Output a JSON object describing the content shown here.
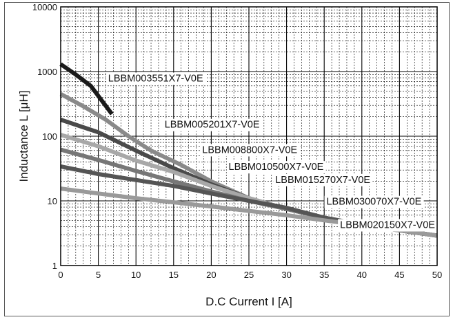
{
  "chart_data": {
    "type": "line",
    "title": "",
    "xlabel": "D.C Current I [A]",
    "ylabel": "Inductance L  [μH]",
    "xlim": [
      0,
      50
    ],
    "ylim": [
      1,
      10000
    ],
    "yscale": "log",
    "grid": true,
    "x_ticks": [
      0,
      5,
      10,
      15,
      20,
      25,
      30,
      35,
      40,
      45,
      50
    ],
    "y_ticks": [
      1,
      10,
      100,
      1000,
      10000
    ],
    "x_tick_labels": [
      "0",
      "5",
      "10",
      "15",
      "20",
      "25",
      "30",
      "35",
      "40",
      "45",
      "50"
    ],
    "y_tick_labels": [
      "1",
      "10",
      "100",
      "1000",
      "10000"
    ],
    "series": [
      {
        "name": "LBBM003551X7-V0E",
        "color": "#1a1a1a",
        "points": [
          [
            0,
            1300
          ],
          [
            2,
            900
          ],
          [
            4,
            600
          ],
          [
            6.8,
            220
          ]
        ]
      },
      {
        "name": "LBBM005201X7-V0E",
        "color": "#8a8a8a",
        "points": [
          [
            0,
            450
          ],
          [
            3,
            290
          ],
          [
            6,
            180
          ],
          [
            9,
            100
          ],
          [
            12,
            60
          ],
          [
            16,
            36
          ],
          [
            20,
            20
          ],
          [
            25,
            11
          ],
          [
            30,
            7.5
          ],
          [
            35,
            5.5
          ],
          [
            40,
            4.3
          ],
          [
            45,
            3.5
          ],
          [
            50,
            2.9
          ]
        ]
      },
      {
        "name": "LBBM008800X7-V0E",
        "color": "#4a4a4a",
        "points": [
          [
            0,
            180
          ],
          [
            5,
            115
          ],
          [
            10,
            60
          ],
          [
            15,
            32
          ],
          [
            20,
            18
          ],
          [
            25,
            11
          ],
          [
            30,
            7.5
          ],
          [
            35,
            5.5
          ],
          [
            40,
            4.3
          ],
          [
            45,
            3.5
          ],
          [
            50,
            2.9
          ]
        ]
      },
      {
        "name": "LBBM010500X7-V0E",
        "color": "#a8a8a8",
        "points": [
          [
            0,
            105
          ],
          [
            5,
            70
          ],
          [
            10,
            42
          ],
          [
            15,
            28
          ],
          [
            20,
            17
          ],
          [
            25,
            11
          ],
          [
            30,
            7.5
          ],
          [
            35,
            5.5
          ],
          [
            40,
            4.3
          ],
          [
            45,
            3.5
          ],
          [
            50,
            2.9
          ]
        ]
      },
      {
        "name": "LBBM015270X7-V0E",
        "color": "#777777",
        "points": [
          [
            0,
            62
          ],
          [
            5,
            43
          ],
          [
            10,
            29
          ],
          [
            15,
            20
          ],
          [
            20,
            14
          ],
          [
            25,
            10
          ],
          [
            30,
            7.5
          ],
          [
            35,
            5.5
          ],
          [
            40,
            4.3
          ],
          [
            45,
            3.5
          ],
          [
            50,
            2.9
          ]
        ]
      },
      {
        "name": "LBBM020150X7-V0E",
        "color": "#555555",
        "points": [
          [
            0,
            34
          ],
          [
            5,
            26
          ],
          [
            10,
            21
          ],
          [
            15,
            17
          ],
          [
            20,
            13
          ],
          [
            25,
            10
          ],
          [
            30,
            7.8
          ],
          [
            35,
            5.5
          ],
          [
            40,
            4.3
          ],
          [
            45,
            3.5
          ],
          [
            50,
            2.9
          ]
        ]
      },
      {
        "name": "LBBM030070X7-V0E",
        "color": "#9a9a9a",
        "points": [
          [
            0,
            15.5
          ],
          [
            5,
            13
          ],
          [
            10,
            11
          ],
          [
            15,
            9.5
          ],
          [
            20,
            8.2
          ],
          [
            25,
            7
          ],
          [
            30,
            6
          ],
          [
            35,
            5
          ],
          [
            40,
            4.2
          ],
          [
            45,
            3.5
          ],
          [
            50,
            2.9
          ]
        ]
      }
    ],
    "series_labels": [
      {
        "text": "LBBM003551X7-V0E",
        "x": 6.3,
        "y": 700
      },
      {
        "text": "LBBM005201X7-V0E",
        "x": 13.8,
        "y": 135
      },
      {
        "text": "LBBM008800X7-V0E",
        "x": 18.8,
        "y": 55
      },
      {
        "text": "LBBM010500X7-V0E",
        "x": 22.3,
        "y": 30
      },
      {
        "text": "LBBM015270X7-V0E",
        "x": 28.5,
        "y": 19
      },
      {
        "text": "LBBM020150X7-V0E",
        "x": 37.1,
        "y": 3.8
      },
      {
        "text": "LBBM030070X7-V0E",
        "x": 35.3,
        "y": 8.7
      }
    ]
  }
}
